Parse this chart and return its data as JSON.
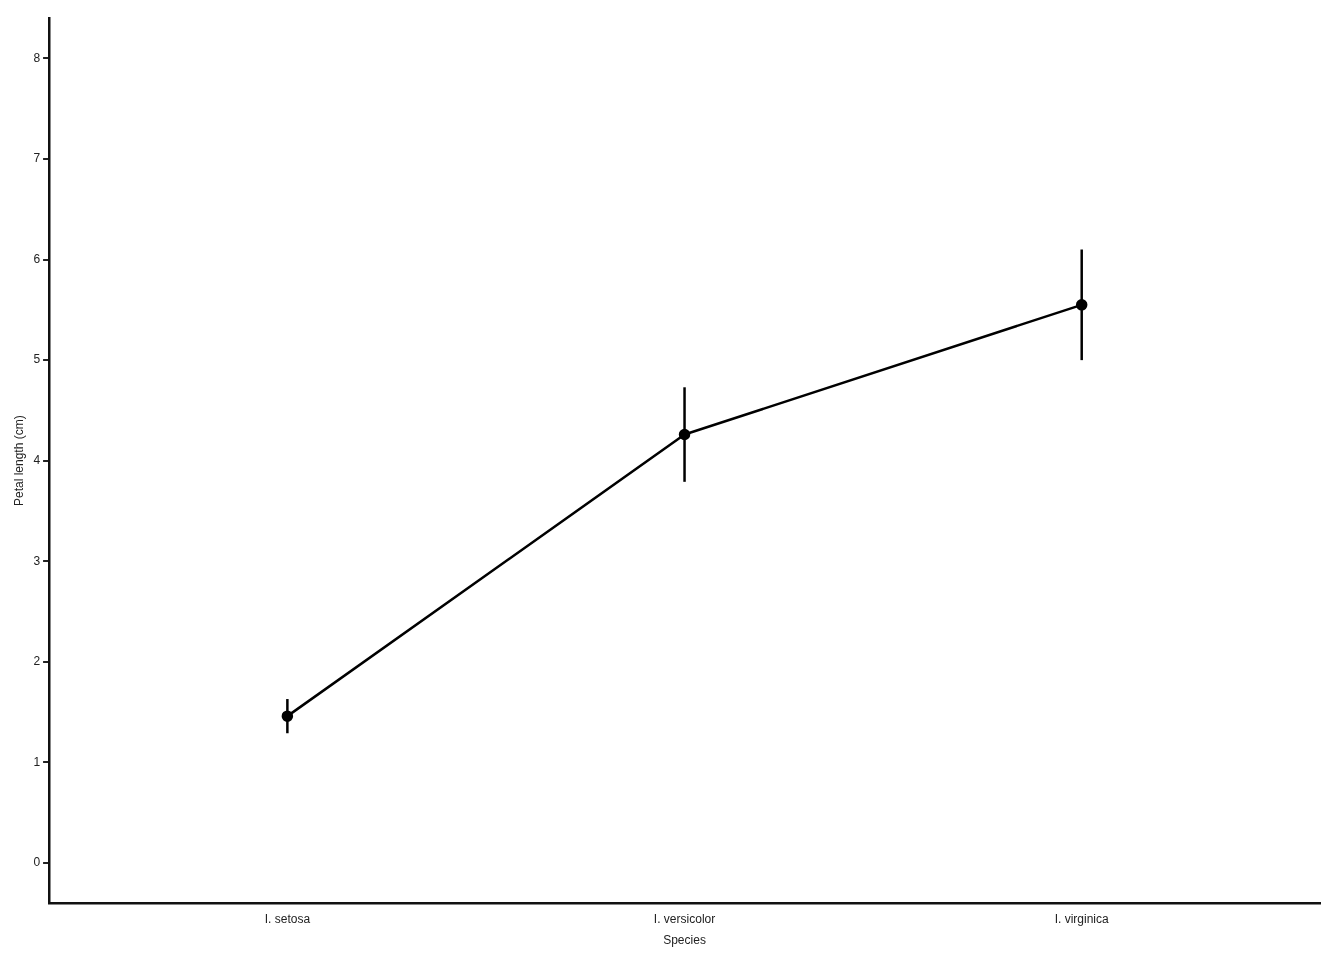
{
  "chart_data": {
    "type": "line",
    "xlabel": "Species",
    "ylabel": "Petal length (cm)",
    "categories": [
      "I. setosa",
      "I. versicolor",
      "I. virginica"
    ],
    "series": [
      {
        "color": "#000000",
        "values": [
          1.46,
          4.26,
          5.55
        ],
        "errors": [
          0.17,
          0.47,
          0.55
        ]
      }
    ],
    "ylim": [
      -0.4,
      8.4
    ],
    "yticks": [
      0,
      1,
      2,
      3,
      4,
      5,
      6,
      7,
      8
    ],
    "grid": false,
    "legend": false,
    "marker": "circle",
    "line_style": "solid"
  }
}
